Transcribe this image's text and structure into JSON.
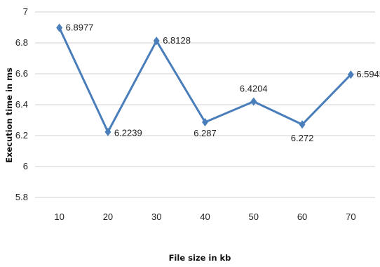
{
  "chart_data": {
    "type": "line",
    "xlabel": "File size in kb",
    "ylabel": "Execution time in ms",
    "categories": [
      "10",
      "20",
      "30",
      "40",
      "50",
      "60",
      "70"
    ],
    "series": [
      {
        "values": [
          6.8977,
          6.2239,
          6.8128,
          6.287,
          6.4204,
          6.272,
          6.5945
        ],
        "labels": [
          "6.8977",
          "6.2239",
          "6.8128",
          "6.287",
          "6.4204",
          "6.272",
          "6.5945"
        ]
      }
    ],
    "ylim": [
      5.8,
      7
    ],
    "yticks": [
      "5.8",
      "6",
      "6.2",
      "6.4",
      "6.6",
      "6.8",
      "7"
    ],
    "grid": true,
    "marker": "diamond",
    "line_color": "#4a7ebb",
    "grid_color": "#d0d0d0"
  }
}
